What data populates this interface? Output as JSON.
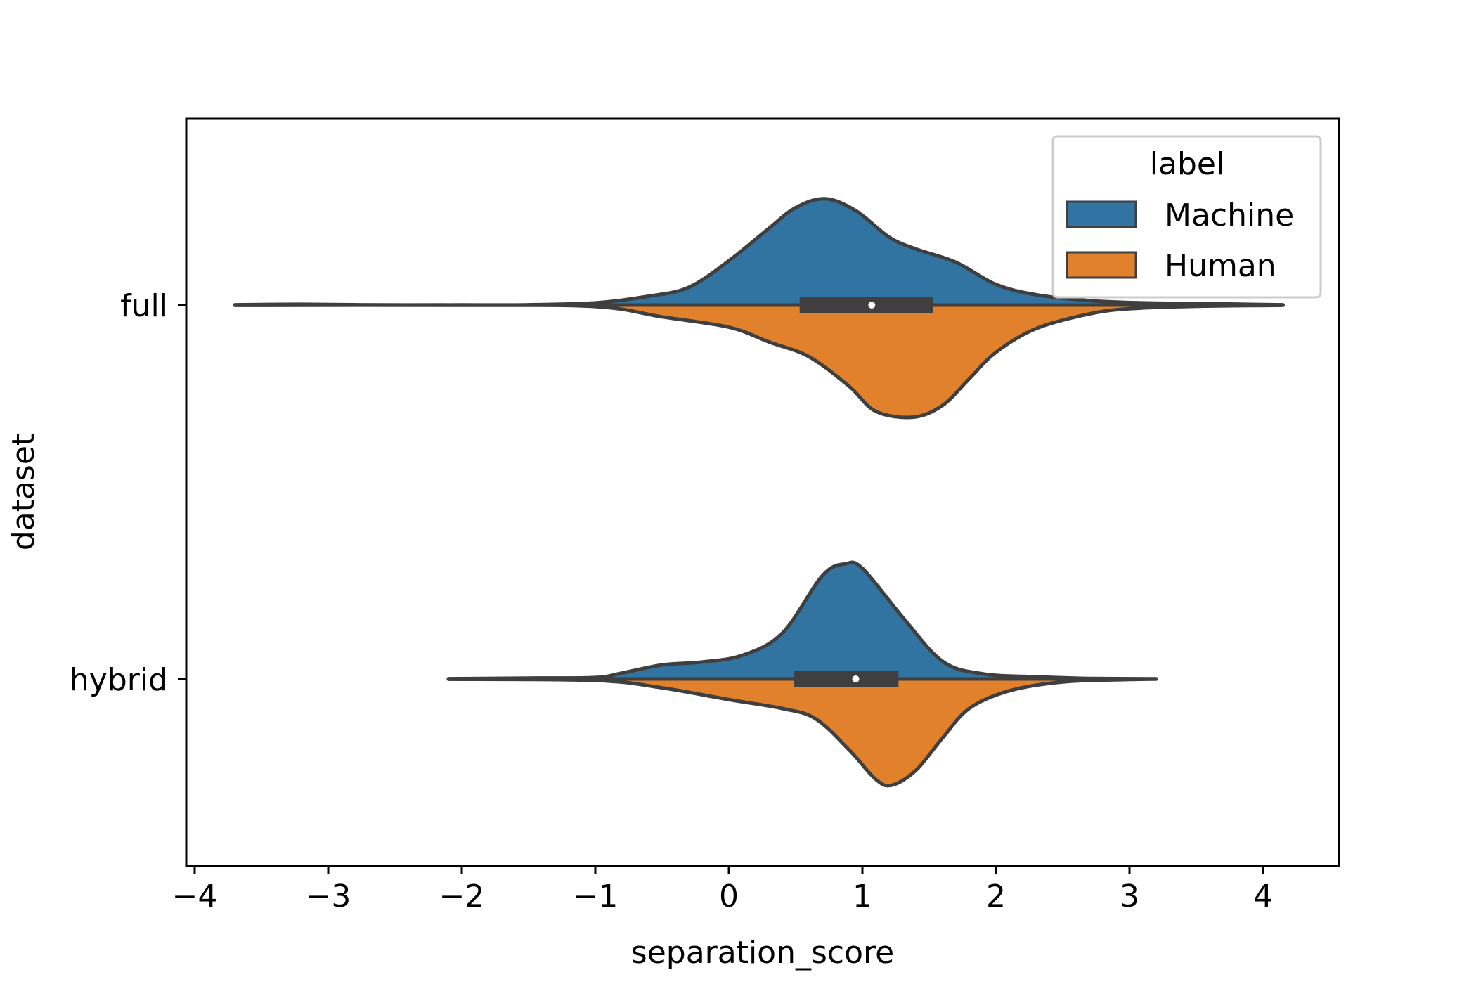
{
  "chart_data": {
    "type": "violin",
    "orientation": "horizontal",
    "split": true,
    "xlabel": "separation_score",
    "ylabel": "dataset",
    "xlim": [
      -4.1,
      4.55
    ],
    "x_ticks": [
      -4,
      -3,
      -2,
      -1,
      0,
      1,
      2,
      3,
      4
    ],
    "x_tick_labels": [
      "−4",
      "−3",
      "−2",
      "−1",
      "0",
      "1",
      "2",
      "3",
      "4"
    ],
    "categories": [
      "full",
      "hybrid"
    ],
    "legend": {
      "title": "label",
      "placement": "top-right"
    },
    "series": [
      {
        "name": "Machine",
        "color": "#3274a1",
        "side": "upper"
      },
      {
        "name": "Human",
        "color": "#e1812c",
        "side": "lower"
      }
    ],
    "violins": [
      {
        "category": "full",
        "range": [
          -3.7,
          4.15
        ],
        "box": {
          "q1": 0.53,
          "median": 1.07,
          "q3": 1.53
        },
        "upper_density": [
          [
            -3.7,
            0.002
          ],
          [
            -3.2,
            0.005
          ],
          [
            -2.6,
            0.001
          ],
          [
            -2.0,
            0.001
          ],
          [
            -1.5,
            0.002
          ],
          [
            -1.0,
            0.015
          ],
          [
            -0.6,
            0.06
          ],
          [
            -0.3,
            0.12
          ],
          [
            0.0,
            0.3
          ],
          [
            0.3,
            0.52
          ],
          [
            0.5,
            0.66
          ],
          [
            0.72,
            0.72
          ],
          [
            0.95,
            0.64
          ],
          [
            1.2,
            0.46
          ],
          [
            1.4,
            0.38
          ],
          [
            1.7,
            0.29
          ],
          [
            2.0,
            0.14
          ],
          [
            2.3,
            0.07
          ],
          [
            2.7,
            0.03
          ],
          [
            3.1,
            0.015
          ],
          [
            3.5,
            0.01
          ],
          [
            4.15,
            0.002
          ]
        ],
        "lower_density": [
          [
            -3.7,
            0.002
          ],
          [
            -2.0,
            0.001
          ],
          [
            -1.0,
            0.01
          ],
          [
            -0.5,
            0.08
          ],
          [
            0.0,
            0.15
          ],
          [
            0.3,
            0.25
          ],
          [
            0.6,
            0.35
          ],
          [
            0.9,
            0.55
          ],
          [
            1.1,
            0.72
          ],
          [
            1.38,
            0.76
          ],
          [
            1.6,
            0.68
          ],
          [
            1.8,
            0.5
          ],
          [
            2.0,
            0.32
          ],
          [
            2.3,
            0.16
          ],
          [
            2.7,
            0.06
          ],
          [
            3.0,
            0.025
          ],
          [
            3.5,
            0.008
          ],
          [
            4.15,
            0.002
          ]
        ]
      },
      {
        "category": "hybrid",
        "range": [
          -2.1,
          3.2
        ],
        "box": {
          "q1": 0.49,
          "median": 0.95,
          "q3": 1.27
        },
        "upper_density": [
          [
            -2.1,
            0.002
          ],
          [
            -1.5,
            0.006
          ],
          [
            -1.0,
            0.01
          ],
          [
            -0.8,
            0.04
          ],
          [
            -0.5,
            0.095
          ],
          [
            -0.2,
            0.115
          ],
          [
            0.1,
            0.16
          ],
          [
            0.4,
            0.31
          ],
          [
            0.7,
            0.7
          ],
          [
            0.87,
            0.78
          ],
          [
            1.0,
            0.75
          ],
          [
            1.3,
            0.42
          ],
          [
            1.6,
            0.12
          ],
          [
            1.9,
            0.035
          ],
          [
            2.3,
            0.015
          ],
          [
            2.7,
            0.004
          ],
          [
            3.2,
            0.001
          ]
        ],
        "lower_density": [
          [
            -2.1,
            0.002
          ],
          [
            -1.0,
            0.01
          ],
          [
            -0.5,
            0.06
          ],
          [
            0.0,
            0.14
          ],
          [
            0.4,
            0.2
          ],
          [
            0.65,
            0.27
          ],
          [
            0.9,
            0.48
          ],
          [
            1.1,
            0.68
          ],
          [
            1.22,
            0.72
          ],
          [
            1.4,
            0.62
          ],
          [
            1.6,
            0.4
          ],
          [
            1.8,
            0.2
          ],
          [
            2.1,
            0.08
          ],
          [
            2.5,
            0.02
          ],
          [
            3.0,
            0.004
          ],
          [
            3.2,
            0.001
          ]
        ]
      }
    ]
  }
}
